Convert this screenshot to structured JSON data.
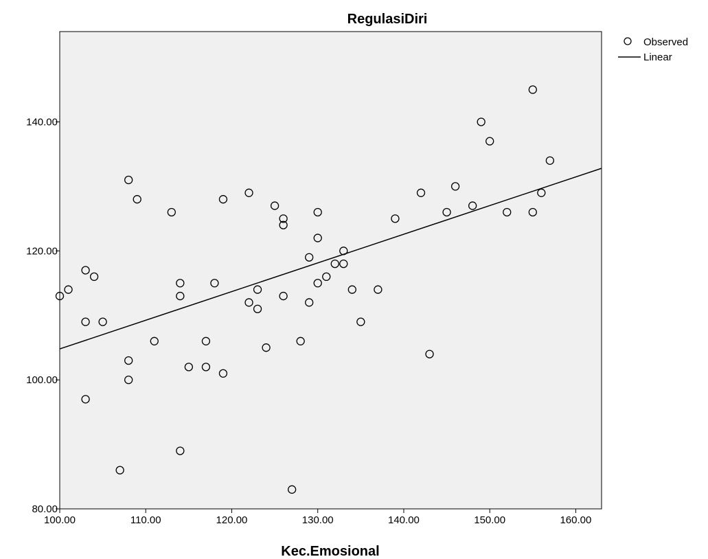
{
  "chart_data": {
    "type": "scatter",
    "title": "RegulasiDiri",
    "xlabel": "Kec.Emosional",
    "ylabel": "",
    "xlim": [
      100,
      163
    ],
    "ylim": [
      80,
      154
    ],
    "x_ticks": [
      100,
      110,
      120,
      130,
      140,
      150,
      160
    ],
    "x_tick_labels": [
      "100.00",
      "110.00",
      "120.00",
      "130.00",
      "140.00",
      "150.00",
      "160.00"
    ],
    "y_ticks": [
      80,
      100,
      120,
      140
    ],
    "y_tick_labels": [
      "80.00",
      "100.00",
      "120.00",
      "140.00"
    ],
    "grid": false,
    "legend_position": "top-right",
    "series": [
      {
        "name": "Observed",
        "kind": "scatter",
        "points": [
          [
            100,
            113
          ],
          [
            101,
            114
          ],
          [
            103,
            117
          ],
          [
            103,
            109
          ],
          [
            103,
            97
          ],
          [
            104,
            116
          ],
          [
            105,
            109
          ],
          [
            107,
            86
          ],
          [
            108,
            131
          ],
          [
            108,
            103
          ],
          [
            108,
            100
          ],
          [
            109,
            128
          ],
          [
            111,
            106
          ],
          [
            113,
            126
          ],
          [
            114,
            115
          ],
          [
            114,
            113
          ],
          [
            114,
            89
          ],
          [
            115,
            102
          ],
          [
            117,
            106
          ],
          [
            117,
            102
          ],
          [
            118,
            115
          ],
          [
            119,
            128
          ],
          [
            119,
            101
          ],
          [
            122,
            129
          ],
          [
            122,
            112
          ],
          [
            123,
            114
          ],
          [
            123,
            111
          ],
          [
            124,
            105
          ],
          [
            125,
            127
          ],
          [
            126,
            125
          ],
          [
            126,
            124
          ],
          [
            126,
            113
          ],
          [
            127,
            83
          ],
          [
            128,
            106
          ],
          [
            129,
            119
          ],
          [
            129,
            112
          ],
          [
            130,
            126
          ],
          [
            130,
            122
          ],
          [
            130,
            115
          ],
          [
            131,
            116
          ],
          [
            132,
            118
          ],
          [
            133,
            120
          ],
          [
            133,
            118
          ],
          [
            134,
            114
          ],
          [
            135,
            109
          ],
          [
            137,
            114
          ],
          [
            139,
            125
          ],
          [
            142,
            129
          ],
          [
            143,
            104
          ],
          [
            145,
            126
          ],
          [
            146,
            130
          ],
          [
            148,
            127
          ],
          [
            149,
            140
          ],
          [
            150,
            137
          ],
          [
            152,
            126
          ],
          [
            155,
            145
          ],
          [
            155,
            126
          ],
          [
            156,
            129
          ],
          [
            157,
            134
          ]
        ]
      },
      {
        "name": "Linear",
        "kind": "line",
        "line": [
          [
            100,
            104.8
          ],
          [
            163,
            132.8
          ]
        ]
      }
    ]
  }
}
